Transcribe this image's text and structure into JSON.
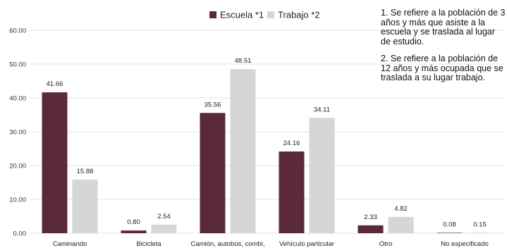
{
  "chart_data": {
    "type": "bar",
    "categories": [
      "Caminando",
      "Bicicleta",
      "Camión, autobús, combi,",
      "Vehículo particular",
      "Otro",
      "No especificado"
    ],
    "series": [
      {
        "name": "Escuela *1",
        "color": "#5b2a3a",
        "values": [
          41.66,
          0.8,
          35.56,
          24.16,
          2.33,
          0.08
        ]
      },
      {
        "name": "Trabajo *2",
        "color": "#d6d6d6",
        "values": [
          15.88,
          2.54,
          48.51,
          34.11,
          4.82,
          0.15
        ]
      }
    ],
    "value_labels": {
      "Escuela *1": [
        "41.66",
        "0.80",
        "35.56",
        "24.16",
        "2.33",
        "0.08"
      ],
      "Trabajo *2": [
        "15.88",
        "2.54",
        "48.51",
        "34.11",
        "4.82",
        "0.15"
      ]
    },
    "y_ticks": [
      "0.00",
      "10.00",
      "20.00",
      "30.00",
      "40.00",
      "50.00",
      "60.00"
    ],
    "ylim": [
      0,
      60
    ],
    "grid": true,
    "legend": "top-center",
    "title": "",
    "xlabel": "",
    "ylabel": ""
  },
  "notes": [
    "1. Se refiere a la población de 3 años y más que asiste a la escuela y se traslada al lugar de estudio.",
    "2. Se refiere a la población de 12 años y más ocupada que se traslada a su lugar trabajo."
  ]
}
